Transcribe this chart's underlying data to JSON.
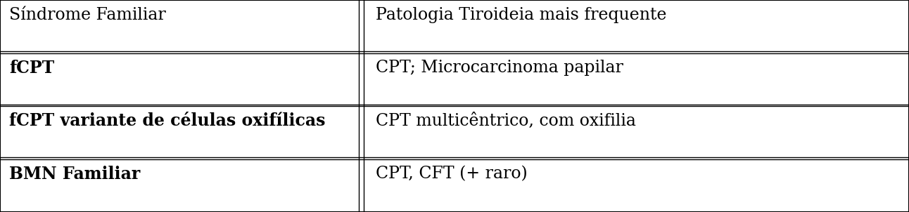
{
  "col1_header": "Síndrome Familiar",
  "col2_header": "Patologia Tiroideia mais frequente",
  "rows": [
    [
      "fCPT",
      "CPT; Microcarcinoma papilar"
    ],
    [
      "fCPT variante de células oxifílicas",
      "CPT multicêntrico, com oxifilia"
    ],
    [
      "BMN Familiar",
      "CPT, CFT (+ raro)"
    ]
  ],
  "col1_bold_rows": [
    true,
    true,
    true
  ],
  "col1_header_bold": false,
  "col2_header_bold": false,
  "bg_color": "#ffffff",
  "line_color": "#000000",
  "text_color": "#000000",
  "font_size": 17,
  "header_font_size": 17,
  "col_split": 0.395,
  "figure_width": 12.92,
  "figure_height": 3.02,
  "dpi": 100
}
